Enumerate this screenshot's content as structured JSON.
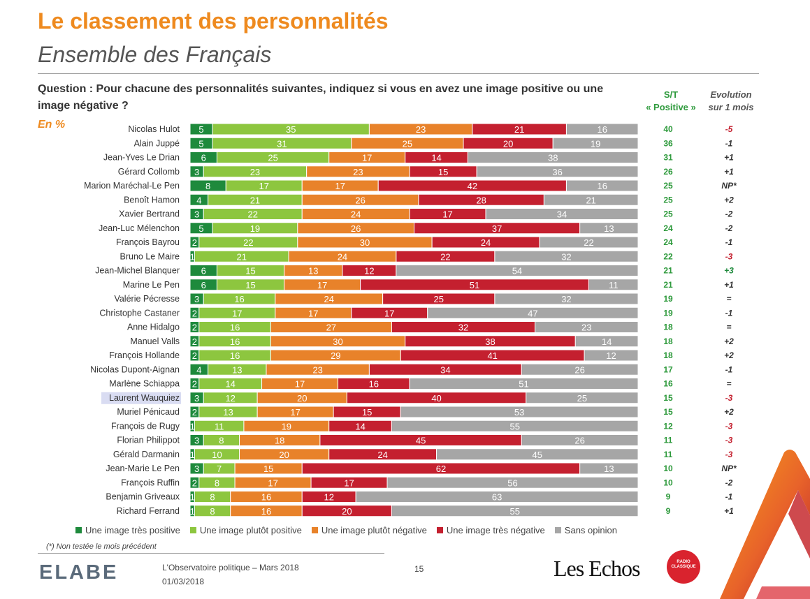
{
  "header": {
    "title": "Le classement des personnalités",
    "subtitle": "Ensemble des Français",
    "question": "Question : Pour chacune des personnalités suivantes, indiquez si vous en avez une image positive ou une image négative ?",
    "unit": "En %",
    "col_positive": "S/T « Positive »",
    "col_evolution": "Evolution sur 1 mois"
  },
  "chart_data": {
    "type": "bar",
    "orientation": "horizontal",
    "stacked": true,
    "categories": [
      "Nicolas Hulot",
      "Alain Juppé",
      "Jean-Yves Le Drian",
      "Gérard Collomb",
      "Marion Maréchal-Le Pen",
      "Benoît Hamon",
      "Xavier Bertrand",
      "Jean-Luc Mélenchon",
      "François Bayrou",
      "Bruno Le Maire",
      "Jean-Michel Blanquer",
      "Marine Le Pen",
      "Valérie Pécresse",
      "Christophe Castaner",
      "Anne Hidalgo",
      "Manuel Valls",
      "François Hollande",
      "Nicolas Dupont-Aignan",
      "Marlène Schiappa",
      "Laurent Wauquiez",
      "Muriel Pénicaud",
      "François de Rugy",
      "Florian Philippot",
      "Gérald Darmanin",
      "Jean-Marie Le Pen",
      "François Ruffin",
      "Benjamin Griveaux",
      "Richard Ferrand"
    ],
    "highlighted": "Laurent Wauquiez",
    "series": [
      {
        "name": "Une image très positive",
        "color": "#1e8a3c",
        "values": [
          5,
          5,
          6,
          3,
          8,
          4,
          3,
          5,
          2,
          1,
          6,
          6,
          3,
          2,
          2,
          2,
          2,
          4,
          2,
          3,
          2,
          1,
          3,
          1,
          3,
          2,
          1,
          1
        ]
      },
      {
        "name": "Une image plutôt positive",
        "color": "#8dc63f",
        "values": [
          35,
          31,
          25,
          23,
          17,
          21,
          22,
          19,
          22,
          21,
          15,
          15,
          16,
          17,
          16,
          16,
          16,
          13,
          14,
          12,
          13,
          11,
          8,
          10,
          7,
          8,
          8,
          8
        ]
      },
      {
        "name": "Une image plutôt négative",
        "color": "#e8822a",
        "values": [
          23,
          25,
          17,
          23,
          17,
          26,
          24,
          26,
          30,
          24,
          13,
          17,
          24,
          17,
          27,
          30,
          29,
          23,
          17,
          20,
          17,
          19,
          18,
          20,
          15,
          17,
          16,
          16
        ]
      },
      {
        "name": "Une image très négative",
        "color": "#c4202f",
        "values": [
          21,
          20,
          14,
          15,
          42,
          28,
          17,
          37,
          24,
          22,
          12,
          51,
          25,
          17,
          32,
          38,
          41,
          34,
          16,
          40,
          15,
          14,
          45,
          24,
          62,
          17,
          12,
          20
        ]
      },
      {
        "name": "Sans opinion",
        "color": "#a6a6a6",
        "values": [
          16,
          19,
          38,
          36,
          16,
          21,
          34,
          13,
          22,
          32,
          54,
          11,
          32,
          47,
          23,
          14,
          12,
          26,
          51,
          25,
          53,
          55,
          26,
          45,
          13,
          56,
          63,
          55
        ]
      }
    ],
    "positive_total": [
      "40",
      "36",
      "31",
      "26",
      "25",
      "25",
      "25",
      "24",
      "24",
      "22",
      "21",
      "21",
      "19",
      "19",
      "18",
      "18",
      "18",
      "17",
      "16",
      "15",
      "15",
      "12",
      "11",
      "11",
      "10",
      "10",
      "9",
      "9"
    ],
    "evolution": [
      "-5",
      "-1",
      "+1",
      "+1",
      "NP*",
      "+2",
      "-2",
      "-2",
      "-1",
      "-3",
      "+3",
      "+1",
      "=",
      "-1",
      "=",
      "+2",
      "+2",
      "-1",
      "=",
      "-3",
      "+2",
      "-3",
      "-3",
      "-3",
      "NP*",
      "-2",
      "-1",
      "+1"
    ],
    "evolution_colors": {
      "negative_strong": "#c4202f",
      "positive_strong": "#1e8a3c",
      "neutral": "#333333"
    }
  },
  "footer": {
    "footnote": "(*) Non testée le mois précédent",
    "brand": "ELABE",
    "report": "L'Observatoire politique – Mars 2018",
    "date": "01/03/2018",
    "page": "15",
    "partner1": "Les Echos",
    "partner2": "RADIO CLASSIQUE"
  },
  "colors": {
    "accent": "#ee8a1f",
    "positive_green": "#2e9a3c",
    "highlight_bg": "#d9dcf2"
  }
}
